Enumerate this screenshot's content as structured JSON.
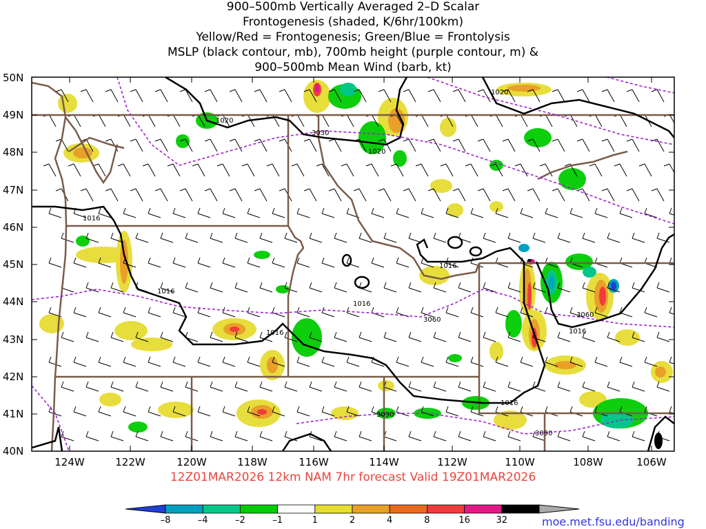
{
  "title": {
    "lines": [
      "900–500mb Vertically Averaged 2–D Scalar",
      "Frontogenesis (shaded, K/6hr/100km)",
      "Yellow/Red = Frontogenesis;  Green/Blue = Frontolysis",
      "MSLP (black contour, mb), 700mb height (purple contour, m) &",
      "900–500mb Mean Wind (barb, kt)"
    ]
  },
  "axes": {
    "lat_labels": [
      "50N",
      "49N",
      "48N",
      "47N",
      "46N",
      "45N",
      "44N",
      "43N",
      "42N",
      "41N",
      "40N"
    ],
    "lon_labels": [
      "124W",
      "122W",
      "120W",
      "118W",
      "116W",
      "114W",
      "112W",
      "110W",
      "108W",
      "106W"
    ]
  },
  "contour_labels": {
    "mslp": [
      "1020",
      "1020",
      "1020",
      "1016",
      "1016",
      "1016",
      "1016",
      "1016",
      "1016",
      "1016"
    ],
    "height": [
      "3030",
      "3060",
      "3060",
      "3090",
      "3090"
    ]
  },
  "valid_time": "12Z01MAR2026  12km NAM 7hr forecast Valid 19Z01MAR2026",
  "colorbar": {
    "labels": [
      "–8",
      "–4",
      "–2",
      "–1",
      "1",
      "2",
      "4",
      "8",
      "16",
      "32"
    ],
    "colors": [
      "#1f3fd6",
      "#00a0c0",
      "#00c68a",
      "#00cc00",
      "#ffffff",
      "#e6dc32",
      "#e8a028",
      "#e86a1e",
      "#f03c3c",
      "#e01888",
      "#000000",
      "#aaaaaa"
    ]
  },
  "credit": "moe.met.fsu.edu/banding",
  "colors": {
    "state_lines": "#7a5a48",
    "mslp": "#000000",
    "height": "#a020d0"
  }
}
